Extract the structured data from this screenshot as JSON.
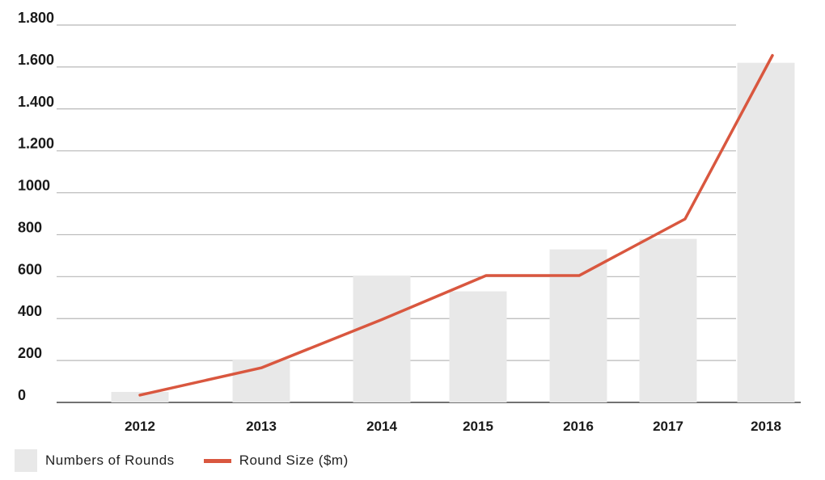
{
  "chart_data": {
    "type": "bar",
    "categories": [
      "2012",
      "2013",
      "2014",
      "2015",
      "2016",
      "2017",
      "2018"
    ],
    "series": [
      {
        "name": "Numbers of Rounds",
        "kind": "bar",
        "values": [
          50,
          205,
          605,
          530,
          730,
          780,
          1620
        ]
      },
      {
        "name": "Round Size ($m)",
        "kind": "line",
        "values": [
          35,
          165,
          395,
          605,
          605,
          875,
          1655
        ]
      }
    ],
    "ylim": [
      0,
      1800
    ],
    "yticks": [
      0,
      200,
      400,
      600,
      800,
      1000,
      1200,
      1400,
      1600,
      1800
    ],
    "ytick_labels": [
      "0",
      "200",
      "400",
      "600",
      "800",
      "1000",
      "1.200",
      "1.400",
      "1.600",
      "1.800"
    ],
    "grid": true,
    "legend_position": "bottom-left",
    "colors": {
      "bar": "#e8e8e8",
      "line": "#d9573f",
      "grid": "#b8b8b8",
      "axis": "#444444"
    }
  }
}
